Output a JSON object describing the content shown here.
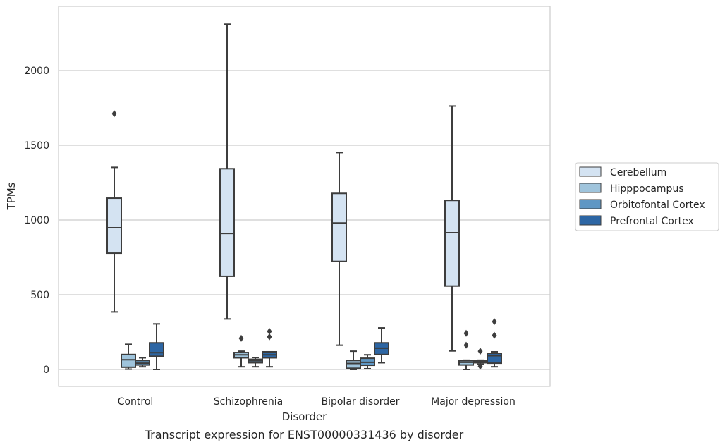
{
  "chart_data": {
    "type": "box",
    "caption": "Transcript expression for ENST00000331436 by disorder",
    "xlabel": "Disorder",
    "ylabel": "TPMs",
    "ylim": [
      -110,
      2420
    ],
    "yticks": [
      0,
      500,
      1000,
      1500,
      2000
    ],
    "grid": true,
    "legend_position": "right",
    "categories": [
      "Control",
      "Schizophrenia",
      "Bipolar disorder",
      "Major depression"
    ],
    "series": [
      {
        "name": "Cerebellum",
        "color": "#d4e3f2",
        "boxes": [
          {
            "whislo": 385,
            "q1": 778,
            "med": 948,
            "q3": 1146,
            "whishi": 1352,
            "fliers": [
              1711
            ]
          },
          {
            "whislo": 338,
            "q1": 623,
            "med": 910,
            "q3": 1343,
            "whishi": 2310,
            "fliers": []
          },
          {
            "whislo": 162,
            "q1": 723,
            "med": 980,
            "q3": 1178,
            "whishi": 1451,
            "fliers": []
          },
          {
            "whislo": 124,
            "q1": 558,
            "med": 915,
            "q3": 1131,
            "whishi": 1762,
            "fliers": []
          }
        ]
      },
      {
        "name": "Hipppocampus",
        "color": "#9fc4dc",
        "boxes": [
          {
            "whislo": 2,
            "q1": 15,
            "med": 65,
            "q3": 100,
            "whishi": 168,
            "fliers": []
          },
          {
            "whislo": 18,
            "q1": 78,
            "med": 98,
            "q3": 113,
            "whishi": 122,
            "fliers": [
              208
            ]
          },
          {
            "whislo": 0,
            "q1": 8,
            "med": 40,
            "q3": 60,
            "whishi": 122,
            "fliers": []
          },
          {
            "whislo": 0,
            "q1": 30,
            "med": 48,
            "q3": 58,
            "whishi": 62,
            "fliers": [
              242,
              162
            ]
          }
        ]
      },
      {
        "name": "Orbitofontal Cortex",
        "color": "#5f97c4",
        "boxes": [
          {
            "whislo": 18,
            "q1": 30,
            "med": 42,
            "q3": 60,
            "whishi": 78,
            "fliers": []
          },
          {
            "whislo": 18,
            "q1": 45,
            "med": 58,
            "q3": 68,
            "whishi": 80,
            "fliers": []
          },
          {
            "whislo": 5,
            "q1": 28,
            "med": 48,
            "q3": 75,
            "whishi": 98,
            "fliers": []
          },
          {
            "whislo": 35,
            "q1": 45,
            "med": 52,
            "q3": 60,
            "whishi": 62,
            "fliers": [
              122,
              22
            ]
          }
        ]
      },
      {
        "name": "Prefrontal Cortex",
        "color": "#2d66a4",
        "boxes": [
          {
            "whislo": 0,
            "q1": 88,
            "med": 112,
            "q3": 178,
            "whishi": 305,
            "fliers": []
          },
          {
            "whislo": 18,
            "q1": 78,
            "med": 98,
            "q3": 118,
            "whishi": 118,
            "fliers": [
              255,
              218
            ]
          },
          {
            "whislo": 45,
            "q1": 100,
            "med": 142,
            "q3": 178,
            "whishi": 278,
            "fliers": []
          },
          {
            "whislo": 18,
            "q1": 42,
            "med": 92,
            "q3": 108,
            "whishi": 118,
            "fliers": [
              320,
              228
            ]
          }
        ]
      }
    ]
  }
}
